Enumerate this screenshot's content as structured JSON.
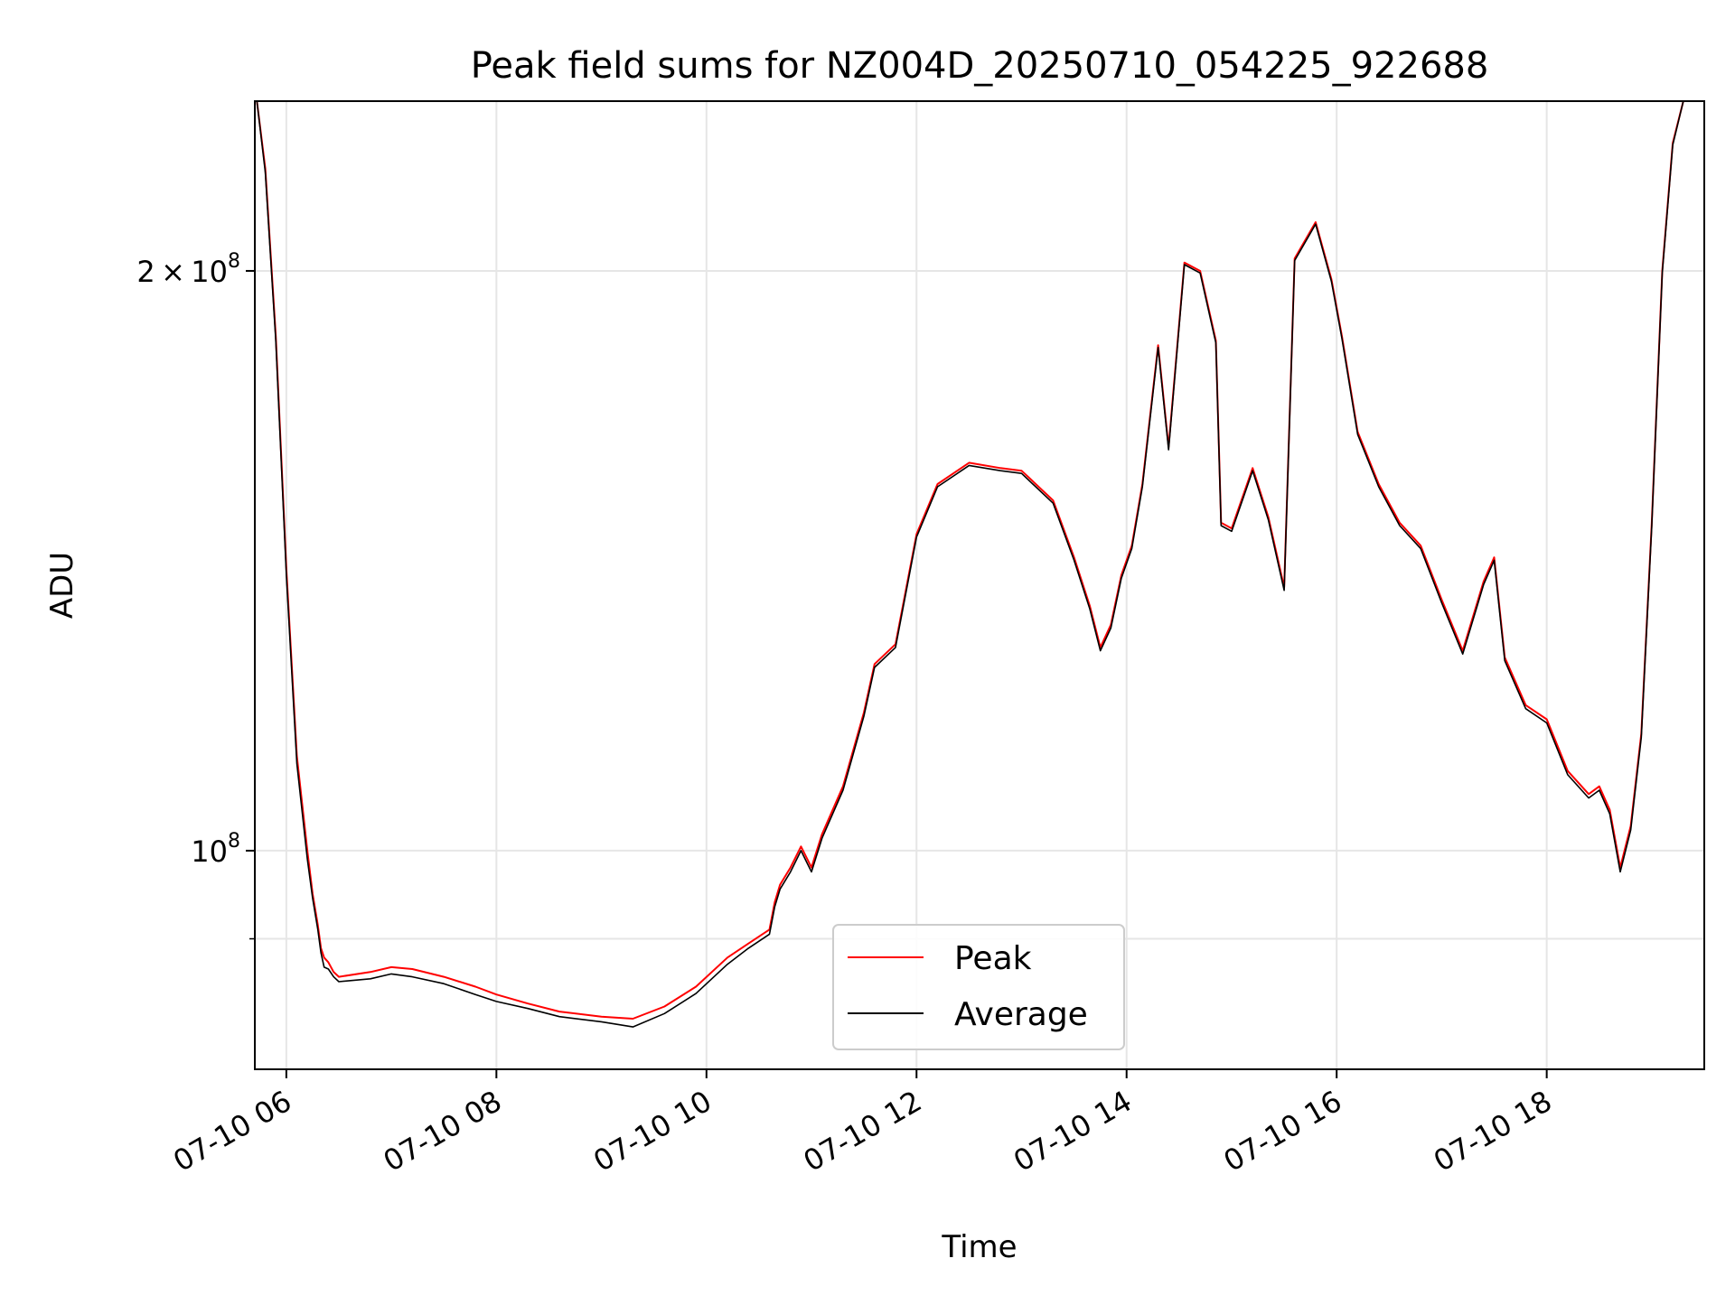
{
  "chart_data": {
    "type": "line",
    "title": "Peak field sums for NZ004D_20250710_054225_922688",
    "xlabel": "Time",
    "ylabel": "ADU",
    "xlim": [
      "07-10 05:42",
      "07-10 19:30"
    ],
    "ylim": [
      77000000,
      245000000
    ],
    "yscale": "log",
    "grid": true,
    "legend_position": "lower-center",
    "xticks": [
      "07-10 06",
      "07-10 08",
      "07-10 10",
      "07-10 12",
      "07-10 14",
      "07-10 16",
      "07-10 18"
    ],
    "xtick_hours": [
      6,
      8,
      10,
      12,
      14,
      16,
      18
    ],
    "yticks": [
      {
        "value": 100000000,
        "label": "10^8",
        "mantissa": "",
        "exponent": "8"
      },
      {
        "value": 200000000,
        "label": "2×10^8",
        "mantissa": "2",
        "exponent": "8"
      }
    ],
    "y_minor_ticks": [
      90000000
    ],
    "x_hours": [
      5.72,
      5.8,
      5.9,
      6.0,
      6.1,
      6.2,
      6.25,
      6.3,
      6.33,
      6.36,
      6.4,
      6.45,
      6.5,
      6.8,
      7.0,
      7.2,
      7.5,
      7.8,
      8.0,
      8.3,
      8.6,
      9.0,
      9.3,
      9.6,
      9.9,
      10.2,
      10.4,
      10.6,
      10.65,
      10.7,
      10.8,
      10.9,
      11.0,
      11.1,
      11.3,
      11.5,
      11.6,
      11.8,
      12.0,
      12.2,
      12.5,
      12.8,
      13.0,
      13.3,
      13.5,
      13.65,
      13.75,
      13.85,
      13.95,
      14.05,
      14.15,
      14.3,
      14.4,
      14.55,
      14.7,
      14.85,
      14.9,
      15.0,
      15.2,
      15.35,
      15.5,
      15.6,
      15.8,
      15.95,
      16.05,
      16.2,
      16.4,
      16.6,
      16.8,
      17.0,
      17.2,
      17.4,
      17.5,
      17.6,
      17.8,
      18.0,
      18.2,
      18.4,
      18.5,
      18.6,
      18.7,
      18.8,
      18.9,
      19.0,
      19.1,
      19.2,
      19.3
    ],
    "series": [
      {
        "name": "Peak",
        "color": "#ff0000",
        "values": [
          245000000,
          226000000,
          185000000,
          140000000,
          112000000,
          100000000,
          95000000,
          91500000,
          89000000,
          88000000,
          87500000,
          86500000,
          86000000,
          86500000,
          87000000,
          86800000,
          86000000,
          85000000,
          84200000,
          83300000,
          82500000,
          82000000,
          81800000,
          83000000,
          85000000,
          88000000,
          89500000,
          91000000,
          94000000,
          96000000,
          98000000,
          100500000,
          98000000,
          102000000,
          108000000,
          118000000,
          125000000,
          128000000,
          146000000,
          155000000,
          159000000,
          158000000,
          157500000,
          152000000,
          142000000,
          134000000,
          127500000,
          131000000,
          139000000,
          144000000,
          155000000,
          183000000,
          162000000,
          202000000,
          200000000,
          184000000,
          148000000,
          147000000,
          158000000,
          149000000,
          137000000,
          203000000,
          212000000,
          198000000,
          185000000,
          165000000,
          155000000,
          148000000,
          144000000,
          135000000,
          127000000,
          138000000,
          142000000,
          126000000,
          119000000,
          117000000,
          110000000,
          107000000,
          108000000,
          105000000,
          98000000,
          103000000,
          115000000,
          148000000,
          200000000,
          233000000,
          245000000
        ]
      },
      {
        "name": "Average",
        "color": "#000000",
        "values": [
          245000000,
          225000000,
          184000000,
          139000000,
          111000000,
          99000000,
          94500000,
          91000000,
          88500000,
          87000000,
          86800000,
          86000000,
          85500000,
          85800000,
          86300000,
          86000000,
          85300000,
          84200000,
          83500000,
          82800000,
          82000000,
          81500000,
          81000000,
          82300000,
          84300000,
          87300000,
          89000000,
          90500000,
          93500000,
          95500000,
          97500000,
          100000000,
          97500000,
          101500000,
          107500000,
          117500000,
          124500000,
          127500000,
          145500000,
          154500000,
          158500000,
          157500000,
          157000000,
          151500000,
          141500000,
          133500000,
          127000000,
          130500000,
          138500000,
          143500000,
          154500000,
          182500000,
          161500000,
          201500000,
          199500000,
          183500000,
          147500000,
          146500000,
          157500000,
          148500000,
          136500000,
          202500000,
          211500000,
          197500000,
          184500000,
          164500000,
          154500000,
          147500000,
          143500000,
          134500000,
          126500000,
          137500000,
          141500000,
          125500000,
          118500000,
          116500000,
          109500000,
          106500000,
          107500000,
          104500000,
          97500000,
          102500000,
          114500000,
          147500000,
          199500000,
          232500000,
          245000000
        ]
      }
    ]
  }
}
